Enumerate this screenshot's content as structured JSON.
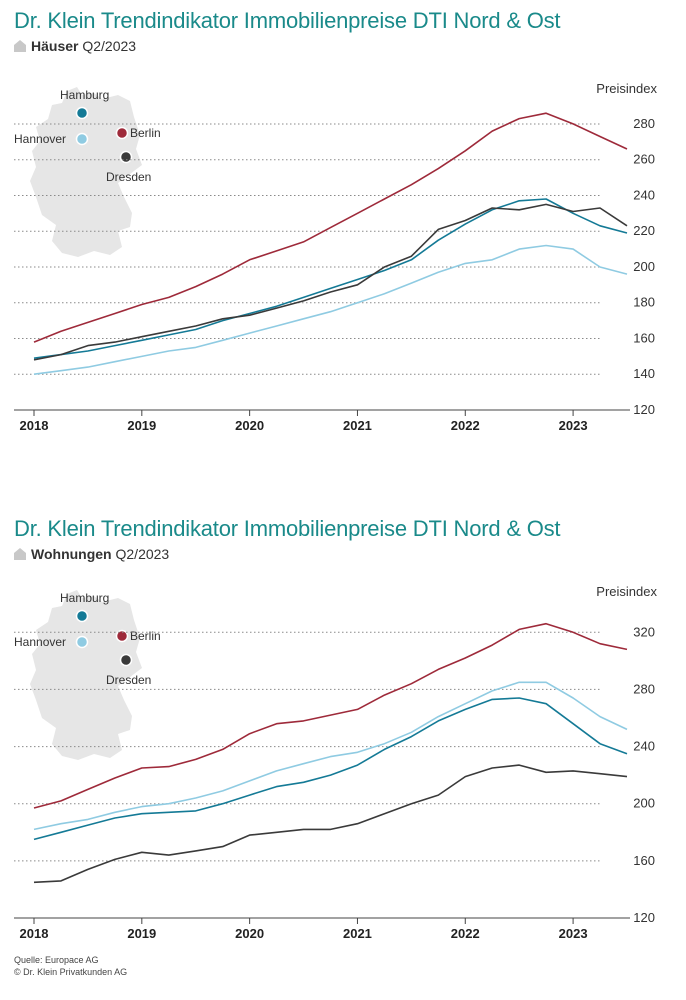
{
  "colors": {
    "title": "#1a8a8a",
    "berlin": "#9e2a3a",
    "hamburg": "#147a96",
    "hannover": "#8fcbe2",
    "dresden": "#3a3a3a",
    "map": "#e6e6e6",
    "grid": "#8a8a8a"
  },
  "charts": [
    {
      "title": "Dr. Klein Trendindikator Immobilienpreise DTI Nord & Ost",
      "segment_label": "Häuser",
      "period": "Q2/2023",
      "icon": "house-icon",
      "unit_label": "Preisindex",
      "map_cities": [
        "Hamburg",
        "Berlin",
        "Hannover",
        "Dresden"
      ]
    },
    {
      "title": "Dr. Klein Trendindikator Immobilienpreise DTI Nord & Ost",
      "segment_label": "Wohnungen",
      "period": "Q2/2023",
      "icon": "house-icon",
      "unit_label": "Preisindex",
      "map_cities": [
        "Hamburg",
        "Berlin",
        "Hannover",
        "Dresden"
      ]
    }
  ],
  "chart_data": [
    {
      "type": "line",
      "title": "Dr. Klein Trendindikator Immobilienpreise DTI Nord & Ost",
      "subtitle": "Häuser Q2/2023",
      "ylabel": "Preisindex",
      "ylim": [
        120,
        285
      ],
      "yticks": [
        120,
        140,
        160,
        180,
        200,
        220,
        240,
        260,
        280
      ],
      "xticks": [
        "2018",
        "2019",
        "2020",
        "2021",
        "2022",
        "2023"
      ],
      "xrange": [
        2018.0,
        2023.5
      ],
      "grid": true,
      "series": [
        {
          "name": "Berlin",
          "color_key": "berlin",
          "x": [
            2018.0,
            2018.25,
            2018.5,
            2018.75,
            2019.0,
            2019.25,
            2019.5,
            2019.75,
            2020.0,
            2020.25,
            2020.5,
            2020.75,
            2021.0,
            2021.25,
            2021.5,
            2021.75,
            2022.0,
            2022.25,
            2022.5,
            2022.75,
            2023.0,
            2023.25,
            2023.5
          ],
          "values": [
            158,
            164,
            169,
            174,
            179,
            183,
            189,
            196,
            204,
            209,
            214,
            222,
            230,
            238,
            246,
            255,
            265,
            276,
            283,
            286,
            280,
            273,
            266
          ]
        },
        {
          "name": "Hamburg",
          "color_key": "hamburg",
          "x": [
            2018.0,
            2018.25,
            2018.5,
            2018.75,
            2019.0,
            2019.25,
            2019.5,
            2019.75,
            2020.0,
            2020.25,
            2020.5,
            2020.75,
            2021.0,
            2021.25,
            2021.5,
            2021.75,
            2022.0,
            2022.25,
            2022.5,
            2022.75,
            2023.0,
            2023.25,
            2023.5
          ],
          "values": [
            149,
            151,
            153,
            156,
            159,
            162,
            165,
            170,
            174,
            178,
            183,
            188,
            193,
            198,
            204,
            215,
            224,
            232,
            237,
            238,
            230,
            223,
            219
          ]
        },
        {
          "name": "Hannover",
          "color_key": "hannover",
          "x": [
            2018.0,
            2018.25,
            2018.5,
            2018.75,
            2019.0,
            2019.25,
            2019.5,
            2019.75,
            2020.0,
            2020.25,
            2020.5,
            2020.75,
            2021.0,
            2021.25,
            2021.5,
            2021.75,
            2022.0,
            2022.25,
            2022.5,
            2022.75,
            2023.0,
            2023.25,
            2023.5
          ],
          "values": [
            140,
            142,
            144,
            147,
            150,
            153,
            155,
            159,
            163,
            167,
            171,
            175,
            180,
            185,
            191,
            197,
            202,
            204,
            210,
            212,
            210,
            200,
            196
          ]
        },
        {
          "name": "Dresden",
          "color_key": "dresden",
          "x": [
            2018.0,
            2018.25,
            2018.5,
            2018.75,
            2019.0,
            2019.25,
            2019.5,
            2019.75,
            2020.0,
            2020.25,
            2020.5,
            2020.75,
            2021.0,
            2021.25,
            2021.5,
            2021.75,
            2022.0,
            2022.25,
            2022.5,
            2022.75,
            2023.0,
            2023.25,
            2023.5
          ],
          "values": [
            148,
            151,
            156,
            158,
            161,
            164,
            167,
            171,
            173,
            177,
            181,
            186,
            190,
            200,
            206,
            221,
            226,
            233,
            232,
            235,
            231,
            233,
            223
          ]
        }
      ]
    },
    {
      "type": "line",
      "title": "Dr. Klein Trendindikator Immobilienpreise DTI Nord & Ost",
      "subtitle": "Wohnungen Q2/2023",
      "ylabel": "Preisindex",
      "ylim": [
        120,
        330
      ],
      "yticks": [
        120,
        160,
        200,
        240,
        280,
        320
      ],
      "xticks": [
        "2018",
        "2019",
        "2020",
        "2021",
        "2022",
        "2023"
      ],
      "xrange": [
        2018.0,
        2023.5
      ],
      "grid": true,
      "series": [
        {
          "name": "Berlin",
          "color_key": "berlin",
          "x": [
            2018.0,
            2018.25,
            2018.5,
            2018.75,
            2019.0,
            2019.25,
            2019.5,
            2019.75,
            2020.0,
            2020.25,
            2020.5,
            2020.75,
            2021.0,
            2021.25,
            2021.5,
            2021.75,
            2022.0,
            2022.25,
            2022.5,
            2022.75,
            2023.0,
            2023.25,
            2023.5
          ],
          "values": [
            197,
            202,
            210,
            218,
            225,
            226,
            231,
            238,
            249,
            256,
            258,
            262,
            266,
            276,
            284,
            294,
            302,
            311,
            322,
            326,
            320,
            312,
            308
          ]
        },
        {
          "name": "Hamburg",
          "color_key": "hamburg",
          "x": [
            2018.0,
            2018.25,
            2018.5,
            2018.75,
            2019.0,
            2019.25,
            2019.5,
            2019.75,
            2020.0,
            2020.25,
            2020.5,
            2020.75,
            2021.0,
            2021.25,
            2021.5,
            2021.75,
            2022.0,
            2022.25,
            2022.5,
            2022.75,
            2023.0,
            2023.25,
            2023.5
          ],
          "values": [
            175,
            180,
            185,
            190,
            193,
            194,
            195,
            200,
            206,
            212,
            215,
            220,
            227,
            238,
            247,
            258,
            266,
            273,
            274,
            270,
            256,
            242,
            235
          ]
        },
        {
          "name": "Hannover",
          "color_key": "hannover",
          "x": [
            2018.0,
            2018.25,
            2018.5,
            2018.75,
            2019.0,
            2019.25,
            2019.5,
            2019.75,
            2020.0,
            2020.25,
            2020.5,
            2020.75,
            2021.0,
            2021.25,
            2021.5,
            2021.75,
            2022.0,
            2022.25,
            2022.5,
            2022.75,
            2023.0,
            2023.25,
            2023.5
          ],
          "values": [
            182,
            186,
            189,
            194,
            198,
            200,
            204,
            209,
            216,
            223,
            228,
            233,
            236,
            242,
            250,
            261,
            270,
            279,
            285,
            285,
            274,
            261,
            252
          ]
        },
        {
          "name": "Dresden",
          "color_key": "dresden",
          "x": [
            2018.0,
            2018.25,
            2018.5,
            2018.75,
            2019.0,
            2019.25,
            2019.5,
            2019.75,
            2020.0,
            2020.25,
            2020.5,
            2020.75,
            2021.0,
            2021.25,
            2021.5,
            2021.75,
            2022.0,
            2022.25,
            2022.5,
            2022.75,
            2023.0,
            2023.25,
            2023.5
          ],
          "values": [
            145,
            146,
            154,
            161,
            166,
            164,
            167,
            170,
            178,
            180,
            182,
            182,
            186,
            193,
            200,
            206,
            219,
            225,
            227,
            222,
            223,
            221,
            219
          ]
        }
      ]
    }
  ],
  "footer": {
    "source": "Quelle: Europace AG",
    "copyright": "© Dr. Klein Privatkunden AG"
  }
}
